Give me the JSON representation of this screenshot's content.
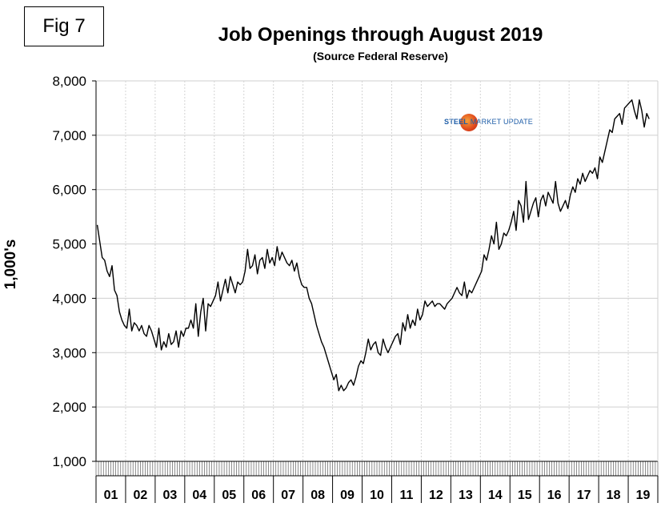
{
  "figure_label": "Fig 7",
  "logo": {
    "text_bold": "STEEL",
    "text_rest": " MARKET UPDATE"
  },
  "chart_data": {
    "type": "line",
    "title": "Job Openings through August 2019",
    "subtitle": "(Source Federal Reserve)",
    "ylabel": "1,000's",
    "xlabel": "",
    "ylim": [
      1000,
      8000
    ],
    "yticks": [
      1000,
      2000,
      3000,
      4000,
      5000,
      6000,
      7000,
      8000
    ],
    "ytick_labels": [
      "1,000",
      "2,000",
      "3,000",
      "4,000",
      "5,000",
      "6,000",
      "7,000",
      "8,000"
    ],
    "year_labels": [
      "01",
      "02",
      "03",
      "04",
      "05",
      "06",
      "07",
      "08",
      "09",
      "10",
      "11",
      "12",
      "13",
      "14",
      "15",
      "16",
      "17",
      "18",
      "19"
    ],
    "x_start": "2001-01",
    "x_end": "2019-08",
    "grid": true,
    "line_color": "#000000",
    "series": [
      {
        "values": [
          5350,
          5050,
          4750,
          4700,
          4500,
          4400,
          4600,
          4150,
          4050,
          3750,
          3600,
          3500,
          3450,
          3800,
          3400,
          3550,
          3500,
          3400,
          3500,
          3350,
          3300,
          3500,
          3400,
          3250,
          3100,
          3450,
          3050,
          3200,
          3100,
          3350,
          3150,
          3200,
          3400,
          3100,
          3400,
          3300,
          3450,
          3450,
          3600,
          3450,
          3900,
          3300,
          3750,
          4000,
          3400,
          3900,
          3850,
          3950,
          4050,
          4300,
          3950,
          4150,
          4350,
          4100,
          4400,
          4250,
          4100,
          4300,
          4250,
          4300,
          4500,
          4900,
          4550,
          4600,
          4800,
          4450,
          4700,
          4750,
          4550,
          4900,
          4650,
          4750,
          4600,
          4950,
          4700,
          4850,
          4750,
          4650,
          4600,
          4700,
          4500,
          4650,
          4400,
          4250,
          4200,
          4200,
          4000,
          3900,
          3700,
          3500,
          3350,
          3200,
          3100,
          2950,
          2800,
          2650,
          2500,
          2600,
          2300,
          2400,
          2300,
          2350,
          2450,
          2500,
          2400,
          2550,
          2750,
          2850,
          2800,
          3000,
          3250,
          3050,
          3150,
          3200,
          3000,
          2950,
          3250,
          3100,
          3000,
          3100,
          3200,
          3300,
          3350,
          3150,
          3550,
          3400,
          3700,
          3450,
          3600,
          3500,
          3800,
          3600,
          3700,
          3950,
          3850,
          3900,
          3950,
          3850,
          3900,
          3900,
          3850,
          3800,
          3900,
          3950,
          4000,
          4100,
          4200,
          4100,
          4050,
          4300,
          4000,
          4150,
          4100,
          4200,
          4300,
          4400,
          4500,
          4800,
          4700,
          4900,
          5150,
          5000,
          5400,
          4900,
          5000,
          5200,
          5150,
          5250,
          5400,
          5600,
          5250,
          5800,
          5700,
          5400,
          6150,
          5450,
          5600,
          5750,
          5850,
          5500,
          5800,
          5900,
          5700,
          5950,
          5850,
          5750,
          6150,
          5750,
          5600,
          5700,
          5800,
          5650,
          5900,
          6050,
          5950,
          6200,
          6100,
          6300,
          6150,
          6250,
          6350,
          6300,
          6400,
          6200,
          6600,
          6500,
          6700,
          6900,
          7100,
          7050,
          7300,
          7350,
          7400,
          7200,
          7500,
          7550,
          7600,
          7650,
          7450,
          7300,
          7650,
          7450,
          7150,
          7400,
          7300
        ]
      }
    ]
  }
}
